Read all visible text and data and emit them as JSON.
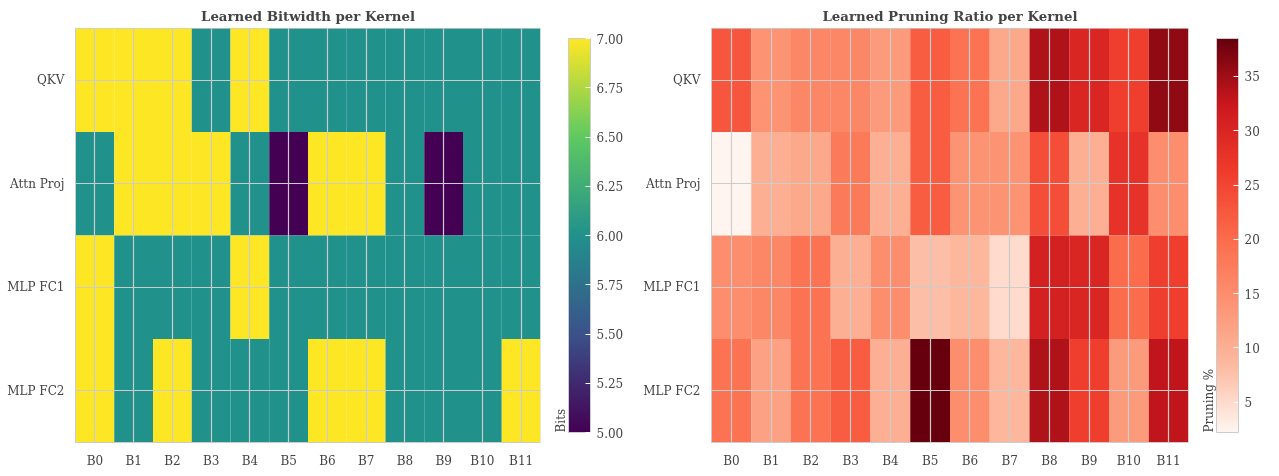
{
  "chart_data": [
    {
      "type": "heatmap",
      "title": "Learned Bitwidth per Kernel",
      "clabel": "Bits",
      "categories": [
        "B0",
        "B1",
        "B2",
        "B3",
        "B4",
        "B5",
        "B6",
        "B7",
        "B8",
        "B9",
        "B10",
        "B11"
      ],
      "y_categories": [
        "QKV",
        "Attn Proj",
        "MLP FC1",
        "MLP FC2"
      ],
      "cells": [
        [
          7,
          7,
          7,
          6,
          7,
          6,
          6,
          6,
          6,
          6,
          6,
          6
        ],
        [
          6,
          7,
          7,
          7,
          6,
          5,
          7,
          7,
          6,
          5,
          6,
          6
        ],
        [
          7,
          6,
          6,
          6,
          7,
          6,
          6,
          6,
          6,
          6,
          6,
          6
        ],
        [
          7,
          6,
          7,
          6,
          6,
          6,
          7,
          7,
          6,
          6,
          6,
          7
        ]
      ],
      "colors": [
        "#440154",
        "#3b528b",
        "#21918c",
        "#5ec962",
        "#fde725"
      ],
      "clim": [
        5,
        7
      ],
      "cticks": [
        {
          "value": 5,
          "label": "5.00"
        },
        {
          "value": 5.25,
          "label": "5.25"
        },
        {
          "value": 5.5,
          "label": "5.50"
        },
        {
          "value": 5.75,
          "label": "5.75"
        },
        {
          "value": 6,
          "label": "6.00"
        },
        {
          "value": 6.25,
          "label": "6.25"
        },
        {
          "value": 6.5,
          "label": "6.50"
        },
        {
          "value": 6.75,
          "label": "6.75"
        },
        {
          "value": 7,
          "label": "7.00"
        }
      ],
      "grid": true
    },
    {
      "type": "heatmap",
      "title": "Learned Pruning Ratio per Kernel",
      "clabel": "Pruning %",
      "categories": [
        "B0",
        "B1",
        "B2",
        "B3",
        "B4",
        "B5",
        "B6",
        "B7",
        "B8",
        "B9",
        "B10",
        "B11"
      ],
      "y_categories": [
        "QKV",
        "Attn Proj",
        "MLP FC1",
        "MLP FC2"
      ],
      "cells": [
        [
          23,
          14,
          16,
          16,
          13,
          22,
          19,
          11,
          34,
          30,
          26,
          36
        ],
        [
          2.2,
          10,
          11,
          18,
          10,
          22,
          14,
          14,
          24,
          10,
          28,
          15
        ],
        [
          15,
          16,
          19,
          10,
          15,
          8,
          9,
          5,
          31,
          30,
          20,
          26
        ],
        [
          19,
          12,
          19,
          22,
          10,
          38.5,
          15,
          9,
          34,
          26,
          13,
          33
        ]
      ],
      "colors": [
        "#fff5f0",
        "#fcbba1",
        "#fc9272",
        "#fb6a4a",
        "#ef3b2c",
        "#cb181d",
        "#67000d"
      ],
      "clim": [
        2.2,
        38.5
      ],
      "cticks": [
        5,
        10,
        15,
        20,
        25,
        30,
        35
      ],
      "grid": true
    }
  ]
}
